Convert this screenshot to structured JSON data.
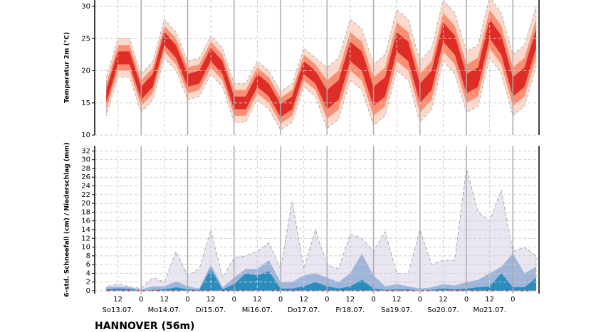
{
  "station": "HANNOVER (56m)",
  "chart_data": [
    {
      "type": "band",
      "ylabel": "Temperatur 2m (°C)",
      "xlim": [
        0,
        229.5
      ],
      "ylim": [
        10,
        31
      ],
      "yticks": [
        10,
        15,
        20,
        25,
        30
      ],
      "xticks": [
        12,
        24,
        36,
        48,
        60,
        72,
        84,
        96,
        108,
        120,
        132,
        144,
        156,
        168,
        180,
        192,
        204,
        216
      ],
      "grid": true,
      "x": [
        6,
        12,
        18,
        24,
        30,
        36,
        42,
        48,
        54,
        60,
        66,
        72,
        78,
        84,
        90,
        96,
        102,
        108,
        114,
        120,
        126,
        132,
        138,
        144,
        150,
        156,
        162,
        168,
        174,
        180,
        186,
        192,
        198,
        204,
        210,
        216,
        222,
        228
      ],
      "bands": [
        {
          "color": "#fdd9cb",
          "low": [
            13,
            19,
            19,
            13.5,
            15.5,
            22,
            20,
            15.5,
            16,
            19.5,
            17.5,
            12,
            12,
            15.5,
            14,
            10.8,
            12,
            17.5,
            16,
            11,
            12.5,
            18.5,
            17,
            11.5,
            13,
            20,
            18.5,
            12,
            14,
            21.5,
            19.5,
            13.5,
            14.5,
            22,
            19.5,
            13,
            14.5,
            20.5
          ],
          "high": [
            19,
            25,
            25,
            19.5,
            21.5,
            28,
            26,
            21.5,
            22,
            25.5,
            23.5,
            18,
            18,
            21.5,
            20,
            16.8,
            18,
            23.5,
            22,
            20.5,
            22,
            28,
            26.5,
            21,
            22.5,
            29.5,
            28,
            21.5,
            23.5,
            31,
            29,
            23,
            24,
            31.5,
            29,
            22.5,
            24,
            30
          ]
        },
        {
          "color": "#fb8f74",
          "low": [
            14,
            20,
            20,
            14.5,
            16.5,
            23,
            21,
            16.5,
            17,
            20.5,
            18.5,
            13,
            13,
            16.5,
            15,
            11.8,
            13,
            18.5,
            17,
            12.5,
            14,
            20,
            18.5,
            13,
            14.5,
            21.5,
            20,
            13.5,
            15.5,
            23,
            21,
            15,
            16,
            23.5,
            21,
            14.5,
            16,
            22
          ],
          "high": [
            18,
            24,
            24,
            18.5,
            20.5,
            27,
            25,
            20.5,
            21,
            24.5,
            22.5,
            17,
            17,
            20.5,
            19,
            15.8,
            17,
            22.5,
            21,
            18.5,
            20,
            26,
            24.5,
            19,
            20.5,
            27.5,
            26,
            19.5,
            21.5,
            29,
            27,
            21,
            22,
            29.5,
            27,
            20.5,
            22,
            28
          ]
        },
        {
          "color": "#de2d26",
          "low": [
            15,
            21,
            21,
            15.5,
            17.5,
            24,
            22,
            17.5,
            18,
            21.5,
            19.5,
            14,
            14,
            17.5,
            16,
            12.8,
            14,
            19.5,
            18,
            14,
            15.5,
            21.5,
            20,
            14.5,
            16,
            23,
            21.5,
            15,
            17,
            24.5,
            22.5,
            16.5,
            17.5,
            25,
            22.5,
            16,
            17.5,
            23.5
          ],
          "high": [
            17,
            23,
            23,
            17.5,
            19.5,
            26,
            24,
            19.5,
            20,
            23.5,
            21.5,
            16,
            16,
            19.5,
            18,
            14.8,
            16,
            21.5,
            20,
            17,
            18.5,
            24.5,
            23,
            17.5,
            19,
            26,
            24.5,
            18,
            20,
            27.5,
            25.5,
            19.5,
            20.5,
            28,
            25.5,
            19,
            20.5,
            26.5
          ]
        }
      ]
    },
    {
      "type": "area",
      "ylabel": "6-std. Schneefall (cm) / Niederschlag (mm)",
      "xlim": [
        0,
        229.5
      ],
      "ylim": [
        0,
        33.2
      ],
      "yticks": [
        0,
        2,
        4,
        6,
        8,
        10,
        12,
        14,
        16,
        18,
        20,
        22,
        24,
        26,
        28,
        30,
        32
      ],
      "xticks": [
        {
          "value": 12,
          "label": "12"
        },
        {
          "value": 24,
          "label": "0"
        },
        {
          "value": 36,
          "label": "12"
        },
        {
          "value": 48,
          "label": "0"
        },
        {
          "value": 60,
          "label": "12"
        },
        {
          "value": 72,
          "label": "0"
        },
        {
          "value": 84,
          "label": "12"
        },
        {
          "value": 96,
          "label": "0"
        },
        {
          "value": 108,
          "label": "12"
        },
        {
          "value": 120,
          "label": "0"
        },
        {
          "value": 132,
          "label": "12"
        },
        {
          "value": 144,
          "label": "0"
        },
        {
          "value": 156,
          "label": "12"
        },
        {
          "value": 168,
          "label": "0"
        },
        {
          "value": 180,
          "label": "12"
        },
        {
          "value": 192,
          "label": "0"
        },
        {
          "value": 204,
          "label": "12"
        },
        {
          "value": 216,
          "label": "0"
        }
      ],
      "day_labels": [
        {
          "value": 12,
          "label": "So13.07."
        },
        {
          "value": 36,
          "label": "Mo14.07."
        },
        {
          "value": 60,
          "label": "Di15.07."
        },
        {
          "value": 84,
          "label": "Mi16.07."
        },
        {
          "value": 108,
          "label": "Do17.07."
        },
        {
          "value": 132,
          "label": "Fr18.07."
        },
        {
          "value": 156,
          "label": "Sa19.07."
        },
        {
          "value": 180,
          "label": "So20.07."
        },
        {
          "value": 204,
          "label": "Mo21.07."
        }
      ],
      "grid": true,
      "x": [
        6,
        12,
        18,
        24,
        30,
        36,
        42,
        48,
        54,
        60,
        66,
        72,
        78,
        84,
        90,
        96,
        102,
        108,
        114,
        120,
        126,
        132,
        138,
        144,
        150,
        156,
        162,
        168,
        174,
        180,
        186,
        192,
        198,
        204,
        210,
        216,
        222,
        228
      ],
      "series": [
        {
          "color": "#e9e5f1",
          "outline": "#999",
          "values": [
            1,
            1.5,
            1,
            0.5,
            3,
            2,
            9,
            3.5,
            5,
            14,
            3,
            7.5,
            8,
            9,
            11,
            5,
            20.5,
            5,
            14,
            6,
            5,
            13,
            12,
            9,
            13.5,
            4,
            4,
            14,
            6,
            7,
            7,
            28,
            18,
            16,
            23,
            9,
            10,
            8
          ]
        },
        {
          "color": "#9fb5d9",
          "values": [
            0.8,
            1,
            0.8,
            0.3,
            1,
            1,
            2.2,
            1,
            0.5,
            6,
            0.8,
            3,
            5,
            5,
            7,
            2,
            2,
            3.5,
            4,
            3,
            2,
            4,
            8.5,
            3.5,
            1,
            1.5,
            1,
            0.5,
            0.8,
            1.5,
            1.2,
            2,
            2.5,
            4,
            5.5,
            8.5,
            4,
            5.5
          ]
        },
        {
          "color": "#2b8cbe",
          "values": [
            0.3,
            0.5,
            0.4,
            0,
            0.2,
            0.3,
            0.8,
            0.3,
            0.2,
            5,
            0.3,
            1.5,
            4,
            3.5,
            4.5,
            0.5,
            0.5,
            1,
            2,
            1,
            0.5,
            1,
            2.5,
            0.5,
            0.2,
            0.3,
            0.3,
            0,
            0.2,
            0.5,
            0.3,
            0.5,
            0.8,
            1,
            4,
            0.8,
            0.8,
            3
          ]
        },
        {
          "color": "#d62728",
          "line": true,
          "values": [
            0,
            0,
            0,
            0,
            0,
            0,
            0,
            0,
            0,
            0,
            0,
            0,
            0,
            0,
            0,
            0,
            0,
            0,
            0,
            0,
            0,
            0,
            0,
            0,
            0,
            0,
            0,
            0,
            0,
            0,
            0,
            0,
            0,
            0,
            0,
            0,
            0,
            0
          ]
        }
      ]
    }
  ]
}
